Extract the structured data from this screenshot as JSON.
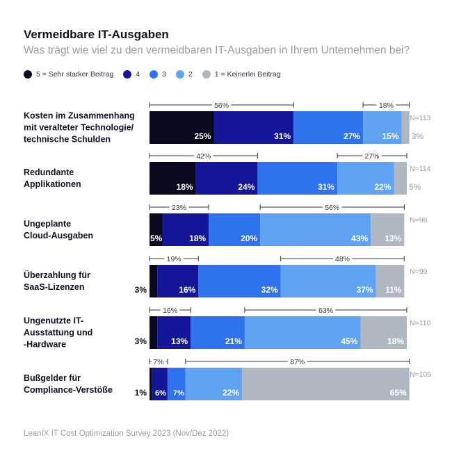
{
  "chart_data": {
    "type": "bar",
    "stacked": true,
    "orientation": "horizontal",
    "title": "Vermeidbare IT-Ausgaben",
    "subtitle": "Was trägt wie viel zu den vermeidbaren IT-Ausgaben in Ihrem Unternehmen bei?",
    "source": "LeanIX IT Cost Optimization Survey 2023 (Nov/Dez 2022)",
    "xlim": [
      0,
      100
    ],
    "legend": [
      {
        "name": "5 = Sehr starker Beitrag",
        "color": "#0a0a1e"
      },
      {
        "name": "4",
        "color": "#16169a"
      },
      {
        "name": "3",
        "color": "#2f72ee"
      },
      {
        "name": "2",
        "color": "#5fa3f4"
      },
      {
        "name": "1 = Keinerlei Beitrag",
        "color": "#aeb7c2"
      }
    ],
    "rows": [
      {
        "label": [
          "Kosten im Zusammenhang",
          "mit veralteter Technologie/",
          "technische Schulden"
        ],
        "n": "N=113",
        "values": [
          25,
          31,
          27,
          15,
          3
        ],
        "top2": "56%",
        "bottom2": "18%"
      },
      {
        "label": [
          "Redundante",
          "Applikationen"
        ],
        "n": "N=114",
        "values": [
          18,
          24,
          31,
          22,
          5
        ],
        "top2": "42%",
        "bottom2": "27%"
      },
      {
        "label": [
          "Ungeplante",
          "Cloud-Ausgaben"
        ],
        "n": "N=98",
        "values": [
          5,
          18,
          20,
          43,
          13
        ],
        "top2": "23%",
        "bottom2": "56%"
      },
      {
        "label": [
          "Überzahlung für",
          "SaaS-Lizenzen"
        ],
        "n": "N=99",
        "values": [
          3,
          16,
          32,
          37,
          11
        ],
        "top2": "19%",
        "bottom2": "48%"
      },
      {
        "label": [
          "Ungenutzte IT-",
          "Ausstattung und",
          "-Hardware"
        ],
        "n": "N=110",
        "values": [
          3,
          13,
          21,
          45,
          18
        ],
        "top2": "16%",
        "bottom2": "63%"
      },
      {
        "label": [
          "Bußgelder für",
          "Compliance-Verstöße"
        ],
        "n": "N=105",
        "values": [
          1,
          6,
          7,
          22,
          65
        ],
        "top2": "7%",
        "bottom2": "87%"
      }
    ]
  }
}
